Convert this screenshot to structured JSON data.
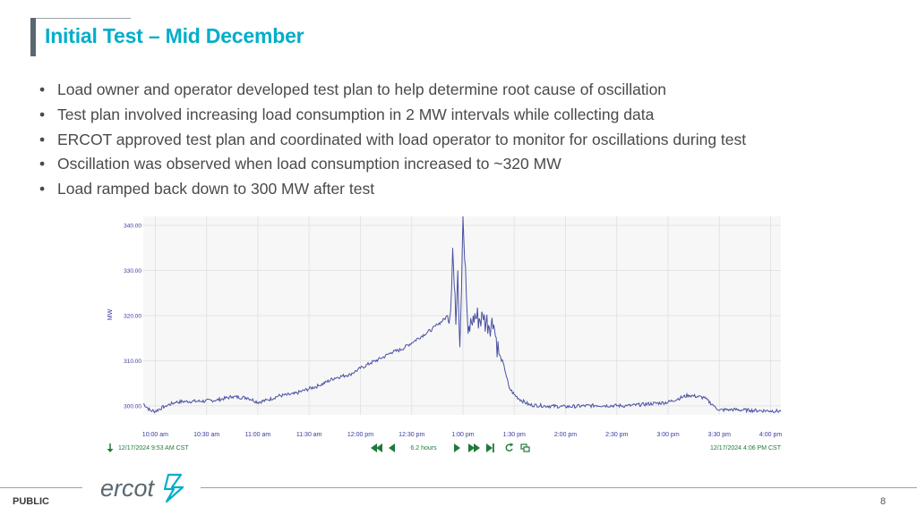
{
  "slide": {
    "title": "Initial Test – Mid December",
    "bullets": [
      "Load owner and operator developed test plan to help determine root cause of oscillation",
      "Test plan involved increasing load consumption in 2 MW intervals while collecting data",
      "ERCOT approved test plan and coordinated with load operator to monitor for oscillations during test",
      "Oscillation was observed when load consumption increased to ~320 MW",
      "Load ramped back down to 300 MW after test"
    ],
    "footer_label": "PUBLIC",
    "page_number": "8",
    "logo_text": "ercot"
  },
  "chart_data": {
    "type": "line",
    "ylabel": "MW",
    "ylim": [
      298,
      342
    ],
    "yticks": [
      "300.00",
      "310.00",
      "320.00",
      "330.00",
      "340.00"
    ],
    "xticks": [
      "10:00 am",
      "10:30 am",
      "11:00 am",
      "11:30 am",
      "12:00 pm",
      "12:30 pm",
      "1:00 pm",
      "1:30 pm",
      "2:00 pm",
      "2:30 pm",
      "3:00 pm",
      "3:30 pm",
      "4:00 pm"
    ],
    "xrange_hours": [
      9.883,
      16.1
    ],
    "line_color": "#4a52a3",
    "grid": true,
    "start_label": "12/17/2024 9:53 AM  CST",
    "end_label": "12/17/2024 4:06 PM  CST",
    "duration_label": "6.2 hours",
    "series": [
      {
        "x": [
          9.883,
          9.95,
          10.0,
          10.1,
          10.2,
          10.3,
          10.45,
          10.6,
          10.75,
          10.9,
          11.0,
          11.1,
          11.2,
          11.35,
          11.5,
          11.6,
          11.75,
          11.9,
          12.0,
          12.1,
          12.2,
          12.3,
          12.4,
          12.5,
          12.6,
          12.7,
          12.75,
          12.8,
          12.85,
          12.88,
          12.9,
          12.93,
          12.95,
          12.97,
          13.0,
          13.05,
          13.1,
          13.2,
          13.3,
          13.35,
          13.4,
          13.45,
          13.5,
          13.55,
          13.65,
          13.8,
          14.0,
          14.3,
          14.6,
          15.0,
          15.2,
          15.35,
          15.45,
          15.5,
          15.6,
          15.8,
          16.0,
          16.1
        ],
        "y": [
          300.5,
          299.0,
          298.8,
          300.0,
          300.8,
          301.0,
          301.0,
          301.3,
          302.0,
          301.8,
          300.8,
          301.3,
          302.2,
          302.6,
          303.8,
          304.5,
          306.2,
          307.0,
          308.3,
          309.5,
          310.5,
          311.8,
          312.5,
          314.0,
          315.5,
          317.0,
          318.0,
          318.8,
          320.0,
          321.0,
          335.0,
          318.0,
          330.0,
          313.0,
          342.0,
          316.0,
          320.0,
          319.0,
          318.0,
          311.5,
          309.0,
          304.0,
          302.5,
          301.5,
          300.2,
          300.0,
          299.8,
          300.1,
          300.0,
          300.8,
          302.4,
          301.8,
          300.0,
          299.0,
          299.2,
          299.0,
          298.9,
          298.8
        ]
      }
    ]
  }
}
